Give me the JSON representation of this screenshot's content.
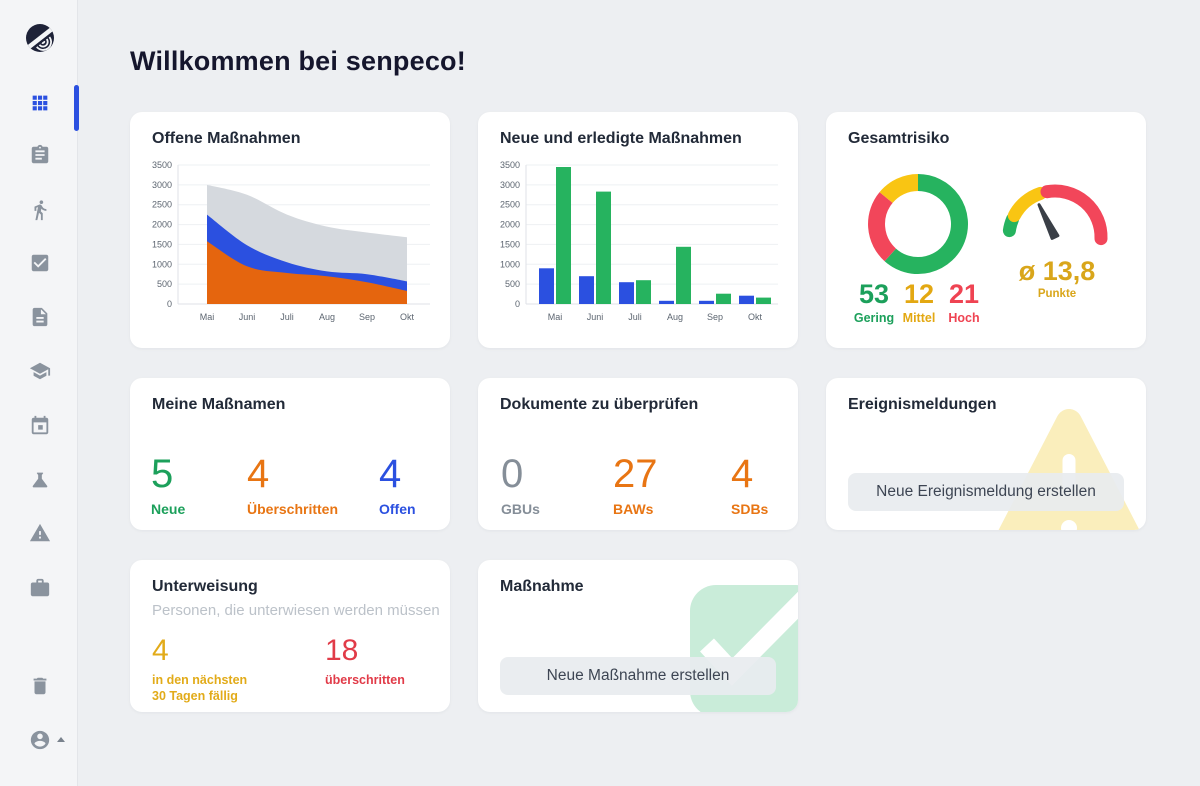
{
  "page": {
    "title": "Willkommen bei senpeco!"
  },
  "colors": {
    "accent_blue": "#2b50e0",
    "green": "#1ca05b",
    "orange": "#e87513",
    "red": "#e23b48",
    "gold": "#e0a914",
    "grey": "#858e98"
  },
  "sidebar": {
    "items": [
      {
        "id": "dashboard",
        "icon": "grid-icon",
        "active": true
      },
      {
        "id": "clipboard",
        "icon": "clipboard-icon",
        "active": false
      },
      {
        "id": "persons",
        "icon": "walking-person-icon",
        "active": false
      },
      {
        "id": "tasks-done",
        "icon": "check-square-icon",
        "active": false
      },
      {
        "id": "documents",
        "icon": "file-icon",
        "active": false
      },
      {
        "id": "training",
        "icon": "graduation-cap-icon",
        "active": false
      },
      {
        "id": "calendar",
        "icon": "calendar-icon",
        "active": false
      },
      {
        "id": "substances",
        "icon": "flask-icon",
        "active": false
      },
      {
        "id": "incidents",
        "icon": "warning-triangle-icon",
        "active": false
      },
      {
        "id": "equipment",
        "icon": "briefcase-icon",
        "active": false
      }
    ],
    "bottom_items": [
      {
        "id": "trash",
        "icon": "trash-icon",
        "active": false
      },
      {
        "id": "account",
        "icon": "account-icon",
        "active": false
      }
    ]
  },
  "cards": {
    "offene": {
      "title": "Offene Maßnahmen"
    },
    "neue_erledigte": {
      "title": "Neue und erledigte Maßnahmen"
    },
    "gesamtrisiko": {
      "title": "Gesamtrisiko",
      "stats": [
        {
          "value": "53",
          "label": "Gering",
          "color": "#1ca05b"
        },
        {
          "value": "12",
          "label": "Mittel",
          "color": "#e3a812"
        },
        {
          "value": "21",
          "label": "Hoch",
          "color": "#ef4352"
        }
      ],
      "gauge_value": "ø 13,8",
      "gauge_unit": "Punkte"
    },
    "meine": {
      "title": "Meine Maßnamen",
      "stats": [
        {
          "value": "5",
          "label": "Neue",
          "color": "#1ca05b"
        },
        {
          "value": "4",
          "label": "Überschritten",
          "color": "#e87513"
        },
        {
          "value": "4",
          "label": "Offen",
          "color": "#2b50e0"
        }
      ]
    },
    "dokumente": {
      "title": "Dokumente zu überprüfen",
      "stats": [
        {
          "value": "0",
          "label": "GBUs",
          "color": "#858e98"
        },
        {
          "value": "27",
          "label": "BAWs",
          "color": "#e87513"
        },
        {
          "value": "4",
          "label": "SDBs",
          "color": "#e87513"
        }
      ]
    },
    "ereignis": {
      "title": "Ereignismeldungen",
      "button_label": "Neue Ereignismeldung erstellen"
    },
    "unterweisung": {
      "title": "Unterweisung",
      "subtitle": "Personen, die unterwiesen werden müssen",
      "stats": [
        {
          "value": "4",
          "label": "in den nächsten\n30 Tagen fällig",
          "color": "#e2ab19"
        },
        {
          "value": "18",
          "label": "überschritten",
          "color": "#e13b48"
        }
      ]
    },
    "massnahme": {
      "title": "Maßnahme",
      "button_label": "Neue Maßnahme erstellen"
    }
  },
  "chart_data": [
    {
      "id": "offene-chart",
      "type": "area",
      "stacked": true,
      "grid": true,
      "title": "Offene Maßnahmen",
      "x": [
        "Mai",
        "Juni",
        "Juli",
        "Aug",
        "Sep",
        "Okt"
      ],
      "series": [
        {
          "name": "unten-orange",
          "color": "#e5650e",
          "values": [
            1580,
            950,
            780,
            700,
            550,
            330
          ]
        },
        {
          "name": "mitte-blau",
          "color": "#2b50e0",
          "values": [
            670,
            530,
            270,
            120,
            200,
            240
          ]
        },
        {
          "name": "oben-grau",
          "color": "#d5d9de",
          "values": [
            750,
            1270,
            1200,
            1130,
            1050,
            1110
          ]
        }
      ],
      "stacked_totals": [
        3000,
        2750,
        2250,
        1950,
        1800,
        1680
      ],
      "ylim": [
        0,
        3500
      ],
      "ytick": 500
    },
    {
      "id": "neue-chart",
      "type": "bar",
      "grid": true,
      "title": "Neue und erledigte Maßnahmen",
      "categories": [
        "Mai",
        "Juni",
        "Juli",
        "Aug",
        "Sep",
        "Okt"
      ],
      "series": [
        {
          "name": "neu",
          "color": "#2b50e0",
          "values": [
            900,
            700,
            550,
            80,
            80,
            210
          ]
        },
        {
          "name": "erledigt",
          "color": "#26b35f",
          "values": [
            3450,
            2830,
            600,
            1440,
            260,
            160
          ]
        }
      ],
      "ylim": [
        0,
        3500
      ],
      "ytick": 500
    },
    {
      "id": "risk-donut",
      "type": "donut",
      "order": "clockwise-from-top",
      "slices": [
        {
          "label": "Gering",
          "value": 53,
          "color": "#26b35f"
        },
        {
          "label": "Hoch",
          "value": 21,
          "color": "#f2465a"
        },
        {
          "label": "Mittel",
          "value": 12,
          "color": "#f9c513"
        }
      ]
    },
    {
      "id": "risk-gauge",
      "type": "gauge",
      "value": 13.8,
      "value_display": "ø 13,8",
      "unit": "Punkte",
      "start_deg": 278,
      "sweep_deg": 174,
      "needle_frac": 0.32,
      "segments": [
        {
          "label": "gering",
          "color": "#26b35f",
          "f0": 0.0,
          "f1": 0.086
        },
        {
          "label": "mittel",
          "color": "#f9c513",
          "f0": 0.113,
          "f1": 0.365
        },
        {
          "label": "hoch",
          "color": "#f2465a",
          "f0": 0.414,
          "f1": 1.0
        }
      ]
    }
  ]
}
